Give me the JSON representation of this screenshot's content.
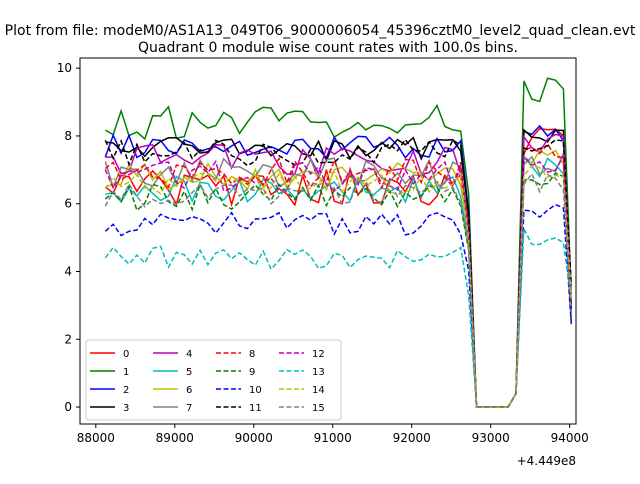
{
  "figure": {
    "suptitle": "Plot from file: modeM0/AS1A13_049T06_9000006054_45396cztM0_level2_quad_clean.evt"
  },
  "chart_data": {
    "type": "line",
    "title": "Quadrant 0 module wise count rates with 100.0s bins.",
    "xlabel": "",
    "ylabel": "",
    "x_offset_label": "+4.449e8",
    "xlim": [
      87800,
      94080
    ],
    "ylim": [
      -0.5,
      10.3
    ],
    "x_ticks": [
      88000,
      89000,
      90000,
      91000,
      92000,
      93000,
      94000
    ],
    "x_tick_labels": [
      "88000",
      "89000",
      "90000",
      "91000",
      "92000",
      "93000",
      "94000"
    ],
    "y_ticks": [
      0,
      2,
      4,
      6,
      8,
      10
    ],
    "y_tick_labels": [
      "0",
      "2",
      "4",
      "6",
      "8",
      "10"
    ],
    "grid": false,
    "legend_position": "lower-left",
    "x_start": 88120,
    "x_step": 100,
    "series": [
      {
        "name": "0",
        "color": "#ff0000",
        "dash": "solid",
        "base": 6.5,
        "amp": 0.55,
        "seed": 1,
        "tail": 7.9
      },
      {
        "name": "1",
        "color": "#008000",
        "dash": "solid",
        "base": 8.4,
        "amp": 0.5,
        "seed": 2,
        "tail": 9.3
      },
      {
        "name": "2",
        "color": "#0000ff",
        "dash": "solid",
        "base": 7.7,
        "amp": 0.35,
        "seed": 3,
        "tail": 8.1
      },
      {
        "name": "3",
        "color": "#000000",
        "dash": "solid",
        "base": 7.6,
        "amp": 0.35,
        "seed": 4,
        "tail": 7.9
      },
      {
        "name": "4",
        "color": "#bf00bf",
        "dash": "solid",
        "base": 7.3,
        "amp": 0.45,
        "seed": 5,
        "tail": 7.8
      },
      {
        "name": "5",
        "color": "#00bfbf",
        "dash": "solid",
        "base": 6.4,
        "amp": 0.4,
        "seed": 6,
        "tail": 7.1
      },
      {
        "name": "6",
        "color": "#bfbf00",
        "dash": "solid",
        "base": 6.8,
        "amp": 0.4,
        "seed": 7,
        "tail": 7.3
      },
      {
        "name": "7",
        "color": "#808080",
        "dash": "solid",
        "base": 6.9,
        "amp": 0.45,
        "seed": 8,
        "tail": 7.2
      },
      {
        "name": "8",
        "color": "#ff0000",
        "dash": "dashed",
        "base": 6.9,
        "amp": 0.45,
        "seed": 9,
        "tail": 7.4
      },
      {
        "name": "9",
        "color": "#008000",
        "dash": "dashed",
        "base": 6.2,
        "amp": 0.4,
        "seed": 10,
        "tail": 6.6
      },
      {
        "name": "10",
        "color": "#0000ff",
        "dash": "dashed",
        "base": 5.4,
        "amp": 0.35,
        "seed": 11,
        "tail": 5.7
      },
      {
        "name": "11",
        "color": "#000000",
        "dash": "dashed",
        "base": 7.5,
        "amp": 0.4,
        "seed": 12,
        "tail": 7.8
      },
      {
        "name": "12",
        "color": "#bf00bf",
        "dash": "dashed",
        "base": 6.8,
        "amp": 0.45,
        "seed": 13,
        "tail": 7.2
      },
      {
        "name": "13",
        "color": "#00bfbf",
        "dash": "dashed",
        "base": 4.4,
        "amp": 0.35,
        "seed": 14,
        "tail": 5.0
      },
      {
        "name": "14",
        "color": "#bfbf00",
        "dash": "dashed",
        "base": 6.6,
        "amp": 0.35,
        "seed": 15,
        "tail": 6.9
      },
      {
        "name": "15",
        "color": "#808080",
        "dash": "dashed",
        "base": 6.3,
        "amp": 0.4,
        "seed": 16,
        "tail": 6.6
      }
    ]
  }
}
